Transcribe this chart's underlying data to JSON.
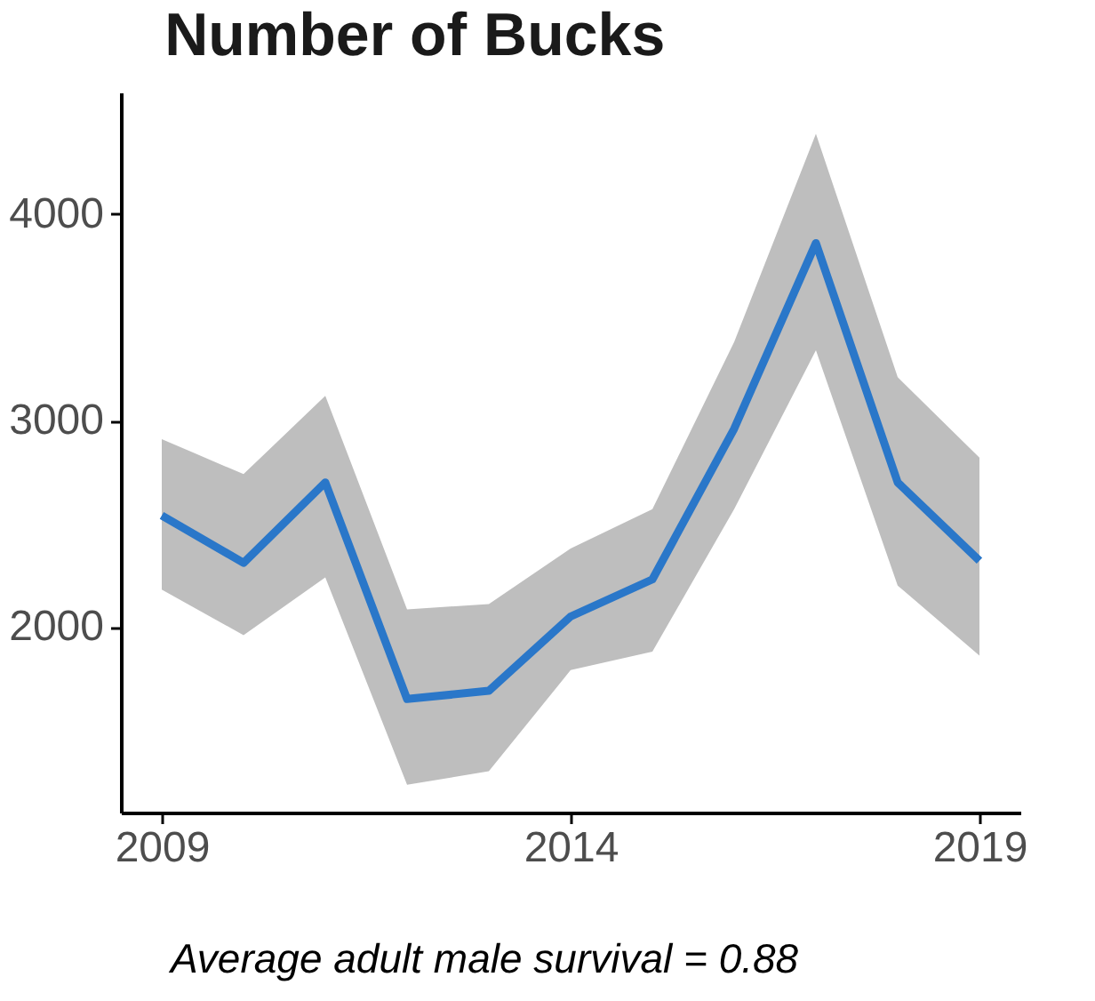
{
  "chart_data": {
    "type": "line",
    "title": "Number of Bucks",
    "annotations": [
      "Average adult male survival = 0.88"
    ],
    "x": [
      2009,
      2010,
      2011,
      2012,
      2013,
      2014,
      2015,
      2016,
      2017,
      2018,
      2019
    ],
    "series": [
      {
        "color": "#2a77c9",
        "values": [
          2540,
          2310,
          2700,
          1650,
          1690,
          2050,
          2230,
          2960,
          3860,
          2700,
          2320
        ],
        "lower": [
          2180,
          1960,
          2240,
          1235,
          1300,
          1790,
          1880,
          2570,
          3340,
          2200,
          1860
        ],
        "upper": [
          2910,
          2740,
          3120,
          2085,
          2110,
          2380,
          2570,
          3380,
          4390,
          3210,
          2820
        ]
      }
    ],
    "xlim": [
      2008.5,
      2019.5
    ],
    "xticks": [
      2009,
      2014,
      2019
    ],
    "ylim": [
      1100,
      4590
    ],
    "yticks": [
      2000,
      3000,
      4000
    ],
    "grid": false,
    "marker": "none",
    "line_style": "solid"
  }
}
